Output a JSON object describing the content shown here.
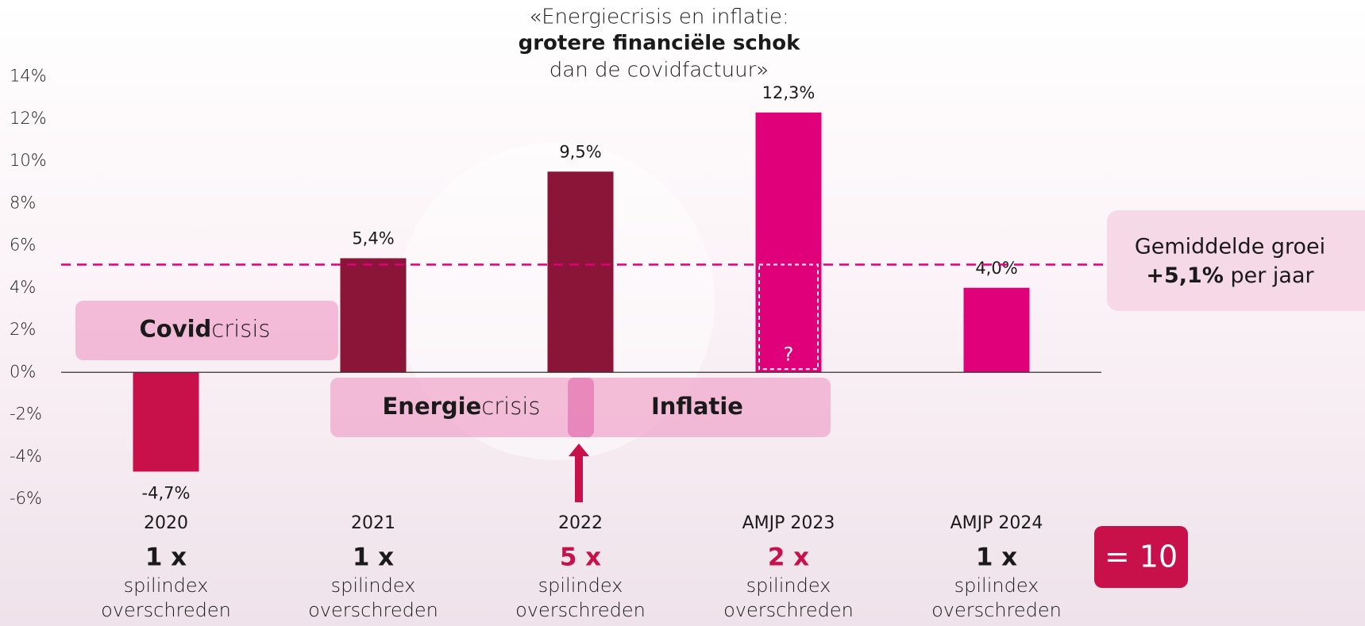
{
  "chart_data": {
    "type": "bar",
    "title_lines": [
      "«Energiecrisis en inflatie:",
      "grotere financiële schok",
      "dan de covidfactuur»"
    ],
    "categories": [
      "2020",
      "2021",
      "2022",
      "AMJP 2023",
      "AMJP 2024"
    ],
    "values": [
      -4.7,
      5.4,
      9.5,
      12.3,
      4.0
    ],
    "value_labels": [
      "-4,7%",
      "5,4%",
      "9,5%",
      "12,3%",
      "4,0%"
    ],
    "colors": [
      "#c8104a",
      "#8b1538",
      "#8b1538",
      "#e0007a",
      "#e0007a"
    ],
    "ylim": [
      -6,
      14
    ],
    "yticks": [
      {
        "value": -6,
        "label": "-6%"
      },
      {
        "value": -4,
        "label": "-4%"
      },
      {
        "value": -2,
        "label": "-2%"
      },
      {
        "value": 0,
        "label": "0%"
      },
      {
        "value": 2,
        "label": "2%"
      },
      {
        "value": 4,
        "label": "4%"
      },
      {
        "value": 6,
        "label": "6%"
      },
      {
        "value": 8,
        "label": "8%"
      },
      {
        "value": 10,
        "label": "10%"
      },
      {
        "value": 12,
        "label": "12%"
      },
      {
        "value": 14,
        "label": "14%"
      }
    ],
    "average": {
      "value": 5.1,
      "label": "+5,1%"
    },
    "average_title": "Gemiddelde groei",
    "average_suffix": "per jaar",
    "average_color": "#e0007a",
    "uncertain_mark": "?",
    "phases": [
      {
        "bold": "Covid",
        "rest": "crisis"
      },
      {
        "bold": "Energie",
        "rest": "crisis"
      },
      {
        "bold": "Inflatie"
      }
    ],
    "count_labels": [
      "1 x",
      "1 x",
      "5 x",
      "2 x",
      "1 x"
    ],
    "count_colors": [
      "#1a1a1a",
      "#1a1a1a",
      "#c8104a",
      "#c8104a",
      "#1a1a1a"
    ],
    "count_line1": "spilindex",
    "count_line2": "overschreden",
    "total": "= 10"
  }
}
